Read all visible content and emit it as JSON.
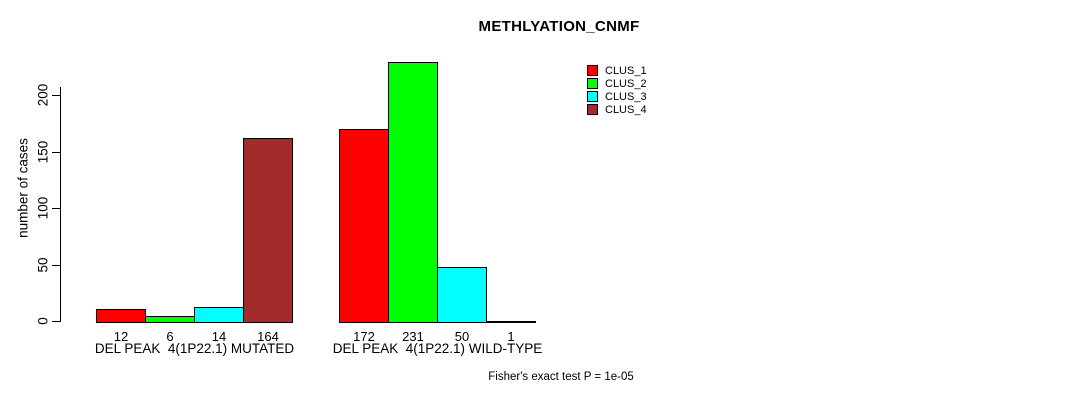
{
  "chart_data": {
    "type": "bar",
    "title": "METHLYATION_CNMF",
    "xlabel": "",
    "ylabel": "number of cases",
    "categories": [
      "DEL PEAK  4(1P22.1) MUTATED",
      "DEL PEAK  4(1P22.1) WILD-TYPE"
    ],
    "series": [
      {
        "name": "CLUS_1",
        "color": "#FF0000",
        "values": [
          12,
          172
        ]
      },
      {
        "name": "CLUS_2",
        "color": "#00FF00",
        "values": [
          6,
          231
        ]
      },
      {
        "name": "CLUS_3",
        "color": "#00FFFF",
        "values": [
          14,
          50
        ]
      },
      {
        "name": "CLUS_4",
        "color": "#A52A2A",
        "values": [
          164,
          1
        ]
      }
    ],
    "bar_value_labels": [
      [
        12,
        6,
        14,
        164
      ],
      [
        172,
        231,
        50,
        1
      ]
    ],
    "yticks": [
      0,
      50,
      100,
      150,
      200
    ],
    "ylim": [
      0,
      235
    ],
    "grid": false,
    "legend_position": "top-right",
    "annotations": [
      "Fisher's exact test P = 1e-05"
    ],
    "axis_color": "#000000",
    "bar_border_color": "#000000",
    "background_color": "#FFFFFF"
  }
}
